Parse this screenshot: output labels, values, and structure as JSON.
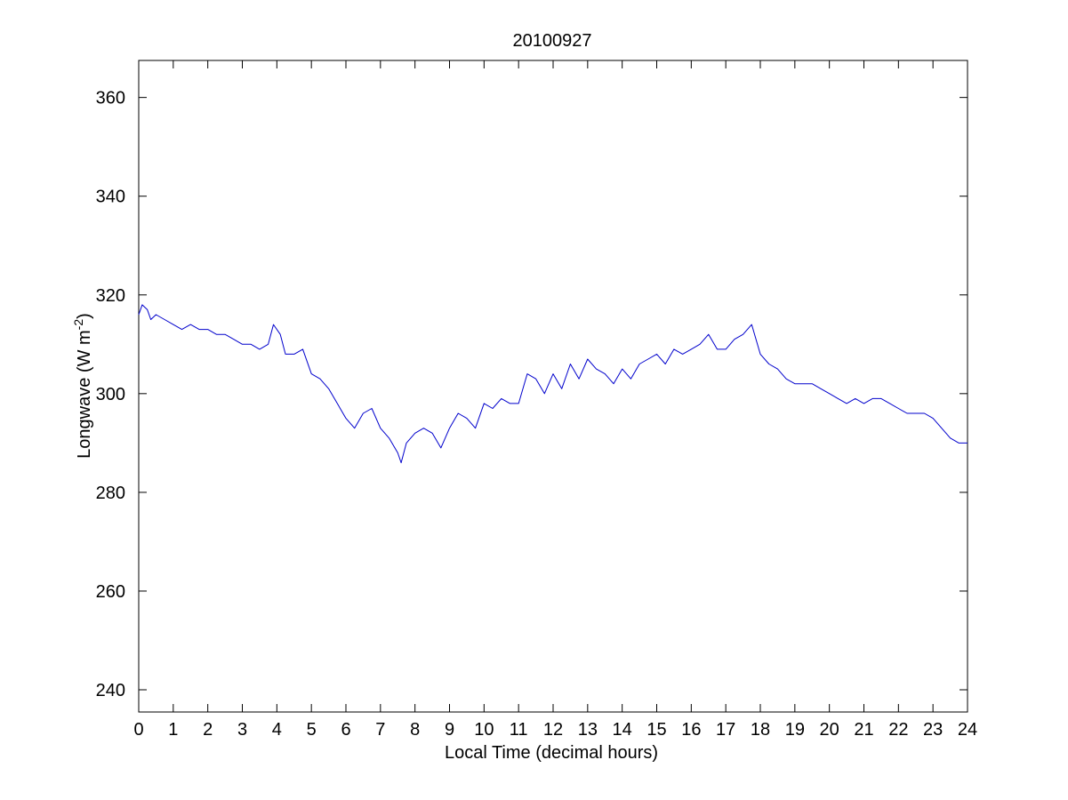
{
  "chart_data": {
    "type": "line",
    "title": "20100927",
    "xlabel": "Local Time (decimal hours)",
    "ylabel": {
      "main": "Longwave (W m",
      "superscript": "-2",
      "close": ")"
    },
    "xlim": [
      0,
      24
    ],
    "ylim": [
      235.5,
      367.5
    ],
    "xticks": [
      0,
      1,
      2,
      3,
      4,
      5,
      6,
      7,
      8,
      9,
      10,
      11,
      12,
      13,
      14,
      15,
      16,
      17,
      18,
      19,
      20,
      21,
      22,
      23,
      24
    ],
    "yticks": [
      240,
      260,
      280,
      300,
      320,
      340,
      360
    ],
    "grid": false,
    "legend": "none",
    "line_color": "#0000cc",
    "series": [
      {
        "x": [
          0,
          0.1,
          0.25,
          0.35,
          0.5,
          0.75,
          1,
          1.25,
          1.5,
          1.75,
          2,
          2.25,
          2.5,
          2.75,
          3,
          3.25,
          3.5,
          3.75,
          3.9,
          4.1,
          4.25,
          4.5,
          4.75,
          5,
          5.25,
          5.5,
          5.75,
          6,
          6.25,
          6.5,
          6.75,
          7,
          7.25,
          7.5,
          7.6,
          7.75,
          8,
          8.25,
          8.5,
          8.75,
          9,
          9.25,
          9.5,
          9.75,
          10,
          10.25,
          10.5,
          10.75,
          11,
          11.25,
          11.5,
          11.75,
          12,
          12.25,
          12.5,
          12.75,
          13,
          13.25,
          13.5,
          13.75,
          14,
          14.25,
          14.5,
          14.75,
          15,
          15.25,
          15.5,
          15.75,
          16,
          16.25,
          16.5,
          16.75,
          17,
          17.25,
          17.5,
          17.75,
          18,
          18.25,
          18.5,
          18.75,
          19,
          19.25,
          19.5,
          19.75,
          20,
          20.25,
          20.5,
          20.75,
          21,
          21.25,
          21.5,
          21.75,
          22,
          22.25,
          22.5,
          22.75,
          23,
          23.25,
          23.5,
          23.75,
          24
        ],
        "y": [
          316,
          318,
          317,
          315,
          316,
          315,
          314,
          313,
          314,
          313,
          313,
          312,
          312,
          311,
          310,
          310,
          309,
          310,
          314,
          312,
          308,
          308,
          309,
          304,
          303,
          301,
          298,
          295,
          293,
          296,
          297,
          293,
          291,
          288,
          286,
          290,
          292,
          293,
          292,
          289,
          293,
          296,
          295,
          293,
          298,
          297,
          299,
          298,
          298,
          304,
          303,
          300,
          304,
          301,
          306,
          303,
          307,
          305,
          304,
          302,
          305,
          303,
          306,
          307,
          308,
          306,
          309,
          308,
          309,
          310,
          312,
          309,
          309,
          311,
          312,
          314,
          308,
          306,
          305,
          303,
          302,
          302,
          302,
          301,
          300,
          299,
          298,
          299,
          298,
          299,
          299,
          298,
          297,
          296,
          296,
          296,
          295,
          293,
          291,
          290,
          290
        ]
      }
    ]
  }
}
